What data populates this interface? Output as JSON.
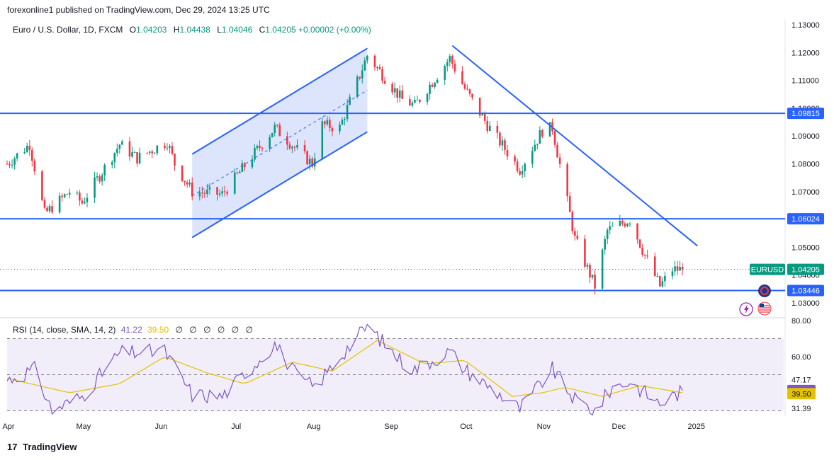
{
  "publisher": "forexonline1 published on TradingView.com, Dec 29, 2024 13:25 UTC",
  "legend": {
    "symbol": "Euro / U.S. Dollar, 1D, FXCM",
    "o_label": "O",
    "o": "1.04203",
    "h_label": "H",
    "h": "1.04438",
    "l_label": "L",
    "l": "1.04046",
    "c_label": "C",
    "c": "1.04205",
    "change": "+0.00002 (+0.00%)"
  },
  "rsi_legend": {
    "title": "RSI (14, close, SMA, 14, 2)",
    "rsi_value": "41.22",
    "sma_value": "39.50",
    "empty_values": [
      "∅",
      "∅",
      "∅",
      "∅",
      "∅",
      "∅"
    ]
  },
  "footer": {
    "logo": "17",
    "brand": "TradingView"
  },
  "colors": {
    "up": "#089981",
    "down": "#f23645",
    "lines": "#2962ff",
    "rsi": "#7e57c2",
    "rsi_sma": "#e5c100",
    "channel_fill": "#d6e0fb"
  },
  "icons": [
    "globe-icon",
    "us-flag-icon",
    "lightning-icon"
  ],
  "chart_data": {
    "type": "candlestick",
    "symbol": "EURUSD",
    "price_axis": {
      "ticks": [
        "1.13000",
        "1.12000",
        "1.11000",
        "1.10000",
        "1.09000",
        "1.08000",
        "1.07000",
        "1.06000",
        "1.05000",
        "1.04000",
        "1.03000"
      ],
      "range": [
        1.0265,
        1.1315
      ]
    },
    "time_axis": {
      "ticks": [
        "Apr",
        "May",
        "Jun",
        "Jul",
        "Aug",
        "Sep",
        "Oct",
        "Nov",
        "Dec",
        "2025"
      ],
      "start": "2024-04-01"
    },
    "horizontal_levels": [
      {
        "label": "1.09815",
        "value": 1.09815
      },
      {
        "label": "1.06024",
        "value": 1.06024
      },
      {
        "label": "1.03446",
        "value": 1.03446
      }
    ],
    "current_price": {
      "symbol_label": "EURUSD",
      "value_label": "1.04205",
      "value": 1.04205
    },
    "close_path": [
      {
        "date": "2024-04-01",
        "close": 1.08
      },
      {
        "date": "2024-04-10",
        "close": 1.087
      },
      {
        "date": "2024-04-16",
        "close": 1.062
      },
      {
        "date": "2024-04-26",
        "close": 1.07
      },
      {
        "date": "2024-05-01",
        "close": 1.066
      },
      {
        "date": "2024-05-16",
        "close": 1.087
      },
      {
        "date": "2024-05-23",
        "close": 1.082
      },
      {
        "date": "2024-06-04",
        "close": 1.088
      },
      {
        "date": "2024-06-07",
        "close": 1.08
      },
      {
        "date": "2024-06-14",
        "close": 1.07
      },
      {
        "date": "2024-06-26",
        "close": 1.069
      },
      {
        "date": "2024-07-17",
        "close": 1.093
      },
      {
        "date": "2024-07-26",
        "close": 1.085
      },
      {
        "date": "2024-08-01",
        "close": 1.08
      },
      {
        "date": "2024-08-05",
        "close": 1.094
      },
      {
        "date": "2024-08-12",
        "close": 1.093
      },
      {
        "date": "2024-08-23",
        "close": 1.119
      },
      {
        "date": "2024-09-06",
        "close": 1.103
      },
      {
        "date": "2024-09-11",
        "close": 1.101
      },
      {
        "date": "2024-09-25",
        "close": 1.118
      },
      {
        "date": "2024-10-01",
        "close": 1.107
      },
      {
        "date": "2024-10-10",
        "close": 1.094
      },
      {
        "date": "2024-10-23",
        "close": 1.078
      },
      {
        "date": "2024-11-01",
        "close": 1.092
      },
      {
        "date": "2024-11-05",
        "close": 1.093
      },
      {
        "date": "2024-11-14",
        "close": 1.053
      },
      {
        "date": "2024-11-22",
        "close": 1.036
      },
      {
        "date": "2024-11-27",
        "close": 1.056
      },
      {
        "date": "2024-12-06",
        "close": 1.06
      },
      {
        "date": "2024-12-12",
        "close": 1.047
      },
      {
        "date": "2024-12-18",
        "close": 1.036
      },
      {
        "date": "2024-12-23",
        "close": 1.042
      },
      {
        "date": "2024-12-27",
        "close": 1.04205
      }
    ],
    "rising_channel": {
      "upper": [
        {
          "date": "2024-06-14",
          "price": 1.0835
        },
        {
          "date": "2024-08-23",
          "price": 1.1215
        }
      ],
      "lower": [
        {
          "date": "2024-06-14",
          "price": 1.0535
        },
        {
          "date": "2024-08-23",
          "price": 1.0915
        }
      ],
      "mid": [
        {
          "date": "2024-06-14",
          "price": 1.0685
        },
        {
          "date": "2024-08-23",
          "price": 1.1065
        }
      ]
    },
    "downtrend_line": [
      {
        "date": "2024-09-26",
        "price": 1.1225
      },
      {
        "date": "2025-01-02",
        "price": 1.0505
      }
    ],
    "rsi": {
      "axis_ticks": [
        "80.00",
        "60.00",
        "47.17",
        "31.39"
      ],
      "range": [
        20,
        85
      ],
      "bands": [
        70,
        50,
        30
      ],
      "current_rsi": 41.22,
      "current_sma": 39.5,
      "rsi_path": [
        {
          "date": "2024-04-01",
          "value": 47
        },
        {
          "date": "2024-04-12",
          "value": 53
        },
        {
          "date": "2024-04-19",
          "value": 30
        },
        {
          "date": "2024-05-01",
          "value": 38
        },
        {
          "date": "2024-05-16",
          "value": 62
        },
        {
          "date": "2024-06-03",
          "value": 63
        },
        {
          "date": "2024-06-14",
          "value": 39
        },
        {
          "date": "2024-06-26",
          "value": 38
        },
        {
          "date": "2024-07-17",
          "value": 67
        },
        {
          "date": "2024-07-26",
          "value": 49
        },
        {
          "date": "2024-08-02",
          "value": 43
        },
        {
          "date": "2024-08-12",
          "value": 60
        },
        {
          "date": "2024-08-23",
          "value": 77
        },
        {
          "date": "2024-09-06",
          "value": 57
        },
        {
          "date": "2024-09-11",
          "value": 53
        },
        {
          "date": "2024-09-25",
          "value": 63
        },
        {
          "date": "2024-10-01",
          "value": 53
        },
        {
          "date": "2024-10-23",
          "value": 31
        },
        {
          "date": "2024-11-05",
          "value": 53
        },
        {
          "date": "2024-11-14",
          "value": 36
        },
        {
          "date": "2024-11-22",
          "value": 30
        },
        {
          "date": "2024-11-29",
          "value": 43
        },
        {
          "date": "2024-12-06",
          "value": 46
        },
        {
          "date": "2024-12-18",
          "value": 34
        },
        {
          "date": "2024-12-27",
          "value": 41
        }
      ],
      "sma_path": [
        {
          "date": "2024-04-01",
          "value": 48
        },
        {
          "date": "2024-04-26",
          "value": 40
        },
        {
          "date": "2024-05-16",
          "value": 45
        },
        {
          "date": "2024-06-03",
          "value": 60
        },
        {
          "date": "2024-06-20",
          "value": 51
        },
        {
          "date": "2024-07-05",
          "value": 45
        },
        {
          "date": "2024-07-24",
          "value": 57
        },
        {
          "date": "2024-08-09",
          "value": 52
        },
        {
          "date": "2024-08-27",
          "value": 69
        },
        {
          "date": "2024-09-15",
          "value": 56
        },
        {
          "date": "2024-10-01",
          "value": 58
        },
        {
          "date": "2024-10-20",
          "value": 38
        },
        {
          "date": "2024-11-01",
          "value": 40
        },
        {
          "date": "2024-11-10",
          "value": 43
        },
        {
          "date": "2024-11-25",
          "value": 38
        },
        {
          "date": "2024-12-10",
          "value": 44
        },
        {
          "date": "2024-12-27",
          "value": 40
        }
      ]
    }
  }
}
